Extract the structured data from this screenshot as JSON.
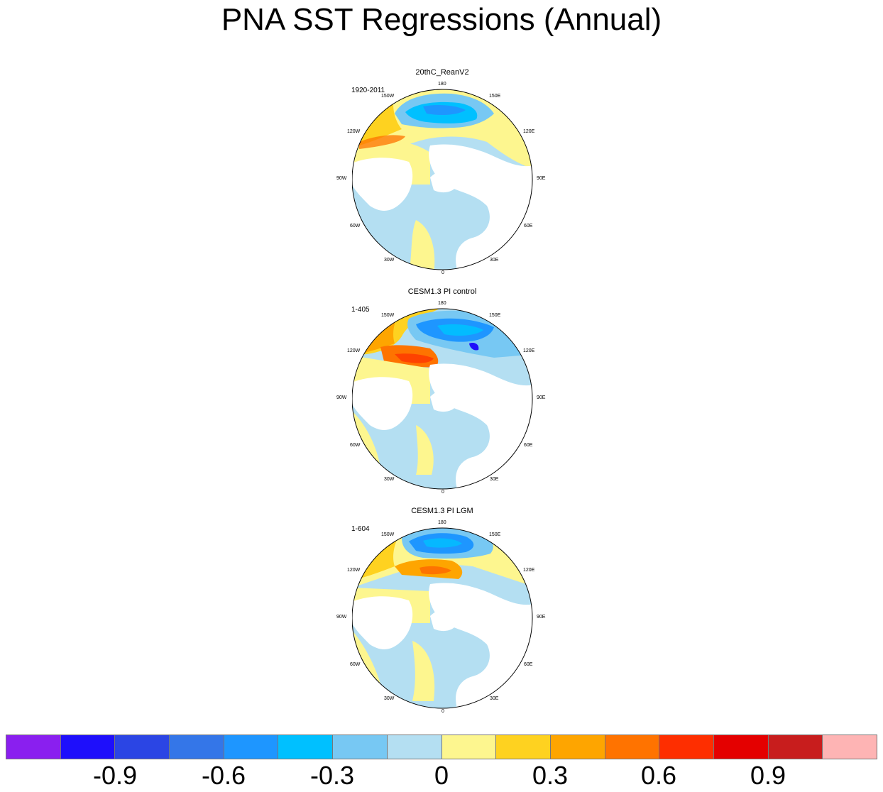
{
  "title": "PNA SST Regressions (Annual)",
  "panels": [
    {
      "title": "20thC_ReanV2",
      "range": "1920-2011"
    },
    {
      "title": "CESM1.3 PI control",
      "range": "1-405"
    },
    {
      "title": "CESM1.3 PI LGM",
      "range": "1-604"
    }
  ],
  "longitude_labels": [
    "180",
    "150E",
    "120E",
    "90E",
    "60E",
    "30E",
    "0",
    "30W",
    "60W",
    "90W",
    "120W",
    "150W"
  ],
  "colorbar": {
    "colors": [
      "#8a1fef",
      "#1e0ffb",
      "#2b45e4",
      "#3476e8",
      "#1e96ff",
      "#00c0ff",
      "#77c8f3",
      "#b4dff2",
      "#fdf68f",
      "#fed220",
      "#fea500",
      "#ff7300",
      "#fe2e00",
      "#e40000",
      "#c81d1d",
      "#feb4b4"
    ],
    "labels": [
      "-0.9",
      "-0.6",
      "-0.3",
      "0",
      "0.3",
      "0.6",
      "0.9"
    ]
  }
}
